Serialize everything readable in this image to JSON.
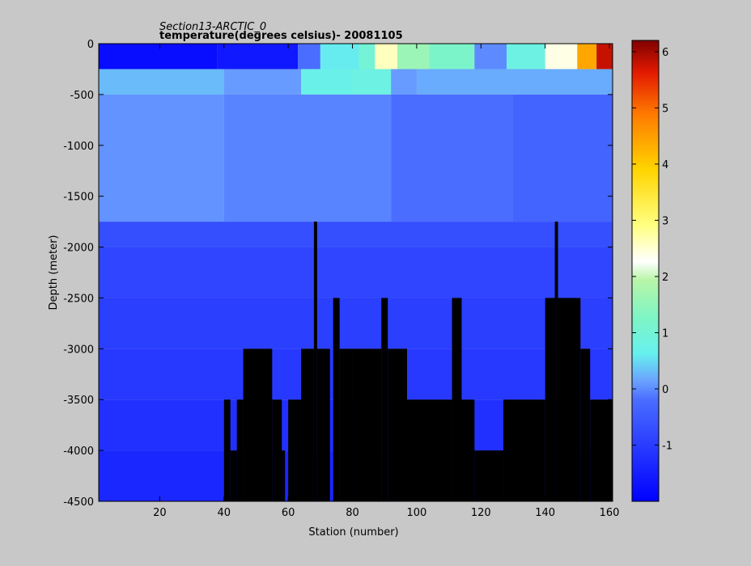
{
  "figure": {
    "title_line1": "Section13-ARCTIC_0",
    "title_line2": "temperature(degrees  celsius)- 20081105"
  },
  "chart_data": {
    "type": "heatmap",
    "title": "Section13-ARCTIC_0",
    "subtitle": "temperature(degrees  celsius)- 20081105",
    "xlabel": "Station (number)",
    "ylabel": "Depth (meter)",
    "xlim": [
      1,
      161
    ],
    "ylim": [
      -4500,
      0
    ],
    "xticks": [
      20,
      40,
      60,
      80,
      100,
      120,
      140,
      160
    ],
    "yticks": [
      0,
      -500,
      -1000,
      -1500,
      -2000,
      -2500,
      -3000,
      -3500,
      -4000,
      -4500
    ],
    "colorbar": {
      "range": [
        -2,
        6.2
      ],
      "ticks": [
        -1,
        0,
        1,
        2,
        3,
        4,
        5,
        6
      ],
      "colormap": "jet"
    },
    "no_data_color": "#000000",
    "temperature_fields": {
      "surface_0_to_250m": [
        {
          "x": [
            1,
            38
          ],
          "t": -1.8
        },
        {
          "x": [
            38,
            63
          ],
          "t": -1.6
        },
        {
          "x": [
            63,
            70
          ],
          "t": -0.2
        },
        {
          "x": [
            70,
            82
          ],
          "t": 0.6
        },
        {
          "x": [
            82,
            87
          ],
          "t": 1.0
        },
        {
          "x": [
            87,
            94
          ],
          "t": 2.6
        },
        {
          "x": [
            94,
            104
          ],
          "t": 1.6
        },
        {
          "x": [
            104,
            118
          ],
          "t": 1.2
        },
        {
          "x": [
            118,
            128
          ],
          "t": 0.0
        },
        {
          "x": [
            128,
            140
          ],
          "t": 0.8
        },
        {
          "x": [
            140,
            150
          ],
          "t": 2.4
        },
        {
          "x": [
            150,
            156
          ],
          "t": 4.4
        },
        {
          "x": [
            156,
            161
          ],
          "t": 5.8
        }
      ],
      "subsurface_250_to_500m": [
        {
          "x": [
            1,
            40
          ],
          "t": 0.3
        },
        {
          "x": [
            40,
            64
          ],
          "t": 0.1
        },
        {
          "x": [
            64,
            80
          ],
          "t": 0.7
        },
        {
          "x": [
            80,
            92
          ],
          "t": 0.8
        },
        {
          "x": [
            92,
            100
          ],
          "t": 0.1
        },
        {
          "x": [
            100,
            161
          ],
          "t": 0.2
        }
      ],
      "intermediate_500_to_1750m": [
        {
          "x": [
            1,
            40
          ],
          "t": 0.05
        },
        {
          "x": [
            40,
            92
          ],
          "t": -0.05
        },
        {
          "x": [
            92,
            130
          ],
          "t": -0.2
        },
        {
          "x": [
            130,
            161
          ],
          "t": -0.35
        }
      ],
      "deep_layers": [
        {
          "depth": [
            -1750,
            -2000
          ],
          "t": -0.7
        },
        {
          "depth": [
            -2000,
            -2500
          ],
          "t": -0.85
        },
        {
          "depth": [
            -2500,
            -3000
          ],
          "t": -0.95
        },
        {
          "depth": [
            -3000,
            -3500
          ],
          "t": -1.05
        },
        {
          "depth": [
            -3500,
            -4000
          ],
          "t": -1.2
        },
        {
          "depth": [
            -4000,
            -4500
          ],
          "t": -1.35
        }
      ]
    },
    "no_data_columns": [
      {
        "x": [
          40,
          42
        ],
        "bottom_depth": -3500
      },
      {
        "x": [
          42,
          44
        ],
        "bottom_depth": -4000
      },
      {
        "x": [
          44,
          46
        ],
        "bottom_depth": -3500
      },
      {
        "x": [
          46,
          55
        ],
        "bottom_depth": -3000
      },
      {
        "x": [
          55,
          58
        ],
        "bottom_depth": -3500
      },
      {
        "x": [
          58,
          59
        ],
        "bottom_depth": -4000
      },
      {
        "x": [
          60,
          64
        ],
        "bottom_depth": -3500
      },
      {
        "x": [
          64,
          68
        ],
        "bottom_depth": -3000
      },
      {
        "x": [
          68,
          69
        ],
        "bottom_depth": -1750
      },
      {
        "x": [
          69,
          73
        ],
        "bottom_depth": -3000
      },
      {
        "x": [
          74,
          76
        ],
        "bottom_depth": -2500
      },
      {
        "x": [
          76,
          80
        ],
        "bottom_depth": -3000
      },
      {
        "x": [
          80,
          89
        ],
        "bottom_depth": -3000
      },
      {
        "x": [
          89,
          91
        ],
        "bottom_depth": -2500
      },
      {
        "x": [
          91,
          97
        ],
        "bottom_depth": -3000
      },
      {
        "x": [
          97,
          111
        ],
        "bottom_depth": -3500
      },
      {
        "x": [
          111,
          114
        ],
        "bottom_depth": -2500
      },
      {
        "x": [
          114,
          118
        ],
        "bottom_depth": -3500
      },
      {
        "x": [
          118,
          127
        ],
        "bottom_depth": -4000
      },
      {
        "x": [
          127,
          140
        ],
        "bottom_depth": -3500
      },
      {
        "x": [
          140,
          143
        ],
        "bottom_depth": -2500
      },
      {
        "x": [
          143,
          144
        ],
        "bottom_depth": -1750
      },
      {
        "x": [
          144,
          151
        ],
        "bottom_depth": -2500
      },
      {
        "x": [
          151,
          154
        ],
        "bottom_depth": -3000
      },
      {
        "x": [
          154,
          161
        ],
        "bottom_depth": -3500
      }
    ]
  }
}
